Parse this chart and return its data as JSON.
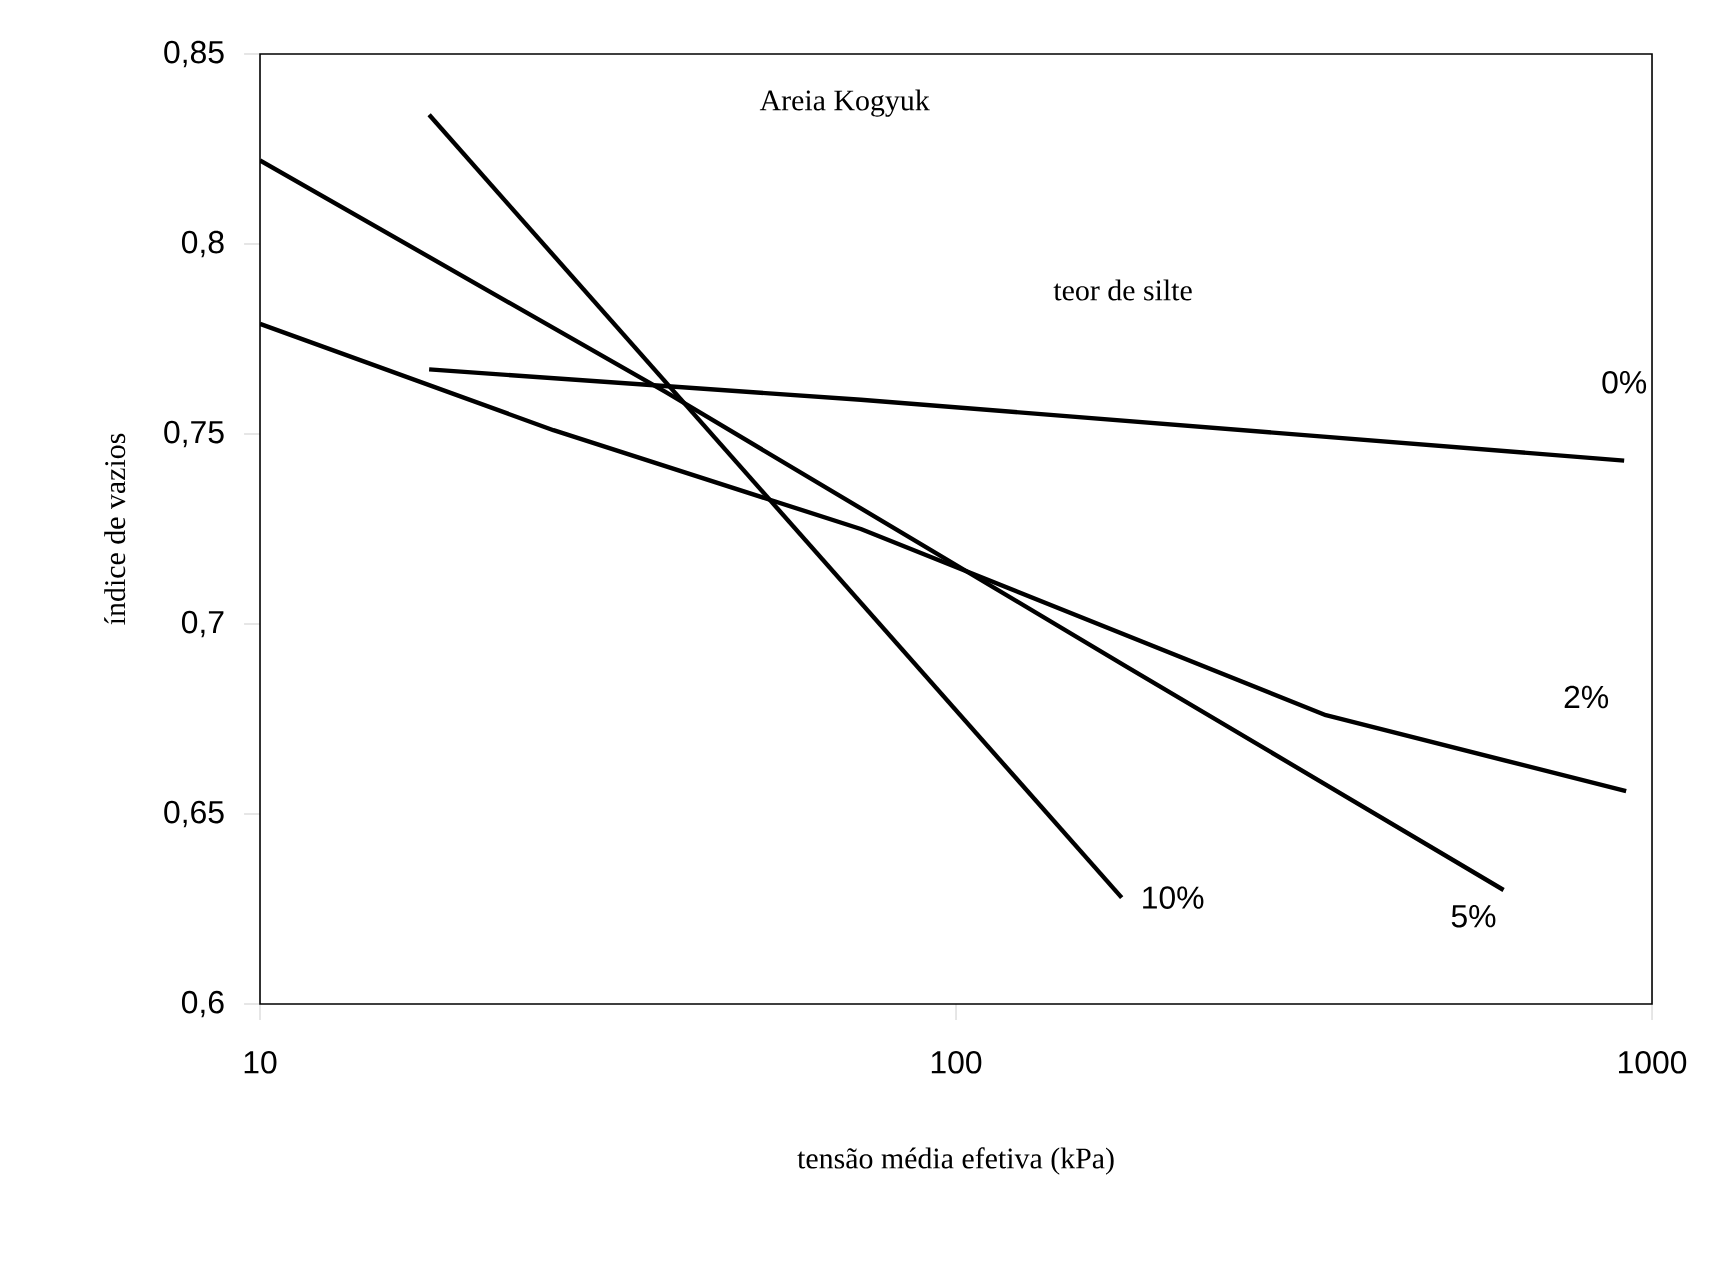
{
  "chart_data": {
    "type": "line",
    "title": "Areia Kogyuk",
    "xlabel": "tensão média efetiva (kPa)",
    "ylabel": "índice de vazios",
    "legend_title": "teor de silte",
    "log": "x",
    "xlim": [
      10,
      1000
    ],
    "ylim": [
      0.6,
      0.85
    ],
    "xticks": [
      10,
      100,
      1000
    ],
    "yticks": [
      {
        "value": 0.6,
        "label": "0,6"
      },
      {
        "value": 0.65,
        "label": "0,65"
      },
      {
        "value": 0.7,
        "label": "0,7"
      },
      {
        "value": 0.75,
        "label": "0,75"
      },
      {
        "value": 0.8,
        "label": "0,8"
      },
      {
        "value": 0.85,
        "label": "0,85"
      }
    ],
    "grid": false,
    "legend": false,
    "marker": "none",
    "line_style": "solid",
    "series": [
      {
        "name": "0%",
        "color": "#000000",
        "x": [
          17.5,
          73,
          912
        ],
        "values": [
          0.767,
          0.759,
          0.743
        ]
      },
      {
        "name": "2%",
        "color": "#000000",
        "x": [
          10,
          26.4,
          73,
          340,
          918
        ],
        "values": [
          0.779,
          0.751,
          0.725,
          0.676,
          0.656
        ]
      },
      {
        "name": "5%",
        "color": "#000000",
        "x": [
          10,
          38.3,
          175,
          612
        ],
        "values": [
          0.822,
          0.761,
          0.689,
          0.63
        ]
      },
      {
        "name": "10%",
        "color": "#000000",
        "x": [
          17.5,
          173
        ],
        "values": [
          0.834,
          0.628
        ]
      }
    ]
  }
}
